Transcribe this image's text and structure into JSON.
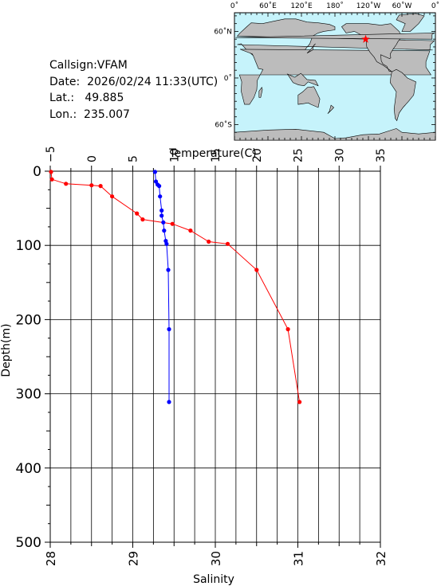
{
  "info": {
    "callsign": "Callsign:VFAM",
    "date": "Date:  2026/02/24 11:33(UTC)",
    "lat": "Lat.:   49.885",
    "lon": "Lon.:  235.007"
  },
  "map": {
    "top_labels": [
      "0˚",
      "60˚E",
      "120˚E",
      "180˚",
      "120˚W",
      "60˚W",
      "0˚"
    ],
    "left_labels": [
      "60˚N",
      "0˚",
      "60˚S"
    ],
    "ocean_color": "#c6f3fb",
    "land_color": "#bcbcbc",
    "marker_color": "#ff0000",
    "marker": {
      "lon": 235.007,
      "lat": 49.885
    }
  },
  "chart_data": {
    "type": "line",
    "ylabel": "Depth(m)",
    "y_ticks": [
      "0",
      "100",
      "200",
      "300",
      "400",
      "500"
    ],
    "ylim": [
      0,
      500
    ],
    "y_inverted": true,
    "grid": true,
    "axes": {
      "temperature": {
        "label": "Temperature(C)",
        "position": "top",
        "lim": [
          -5,
          35
        ],
        "ticks": [
          "−5",
          "0",
          "5",
          "10",
          "15",
          "20",
          "25",
          "30",
          "35"
        ]
      },
      "salinity": {
        "label": "Salinity",
        "position": "bottom",
        "lim": [
          28,
          32
        ],
        "ticks": [
          "28",
          "29",
          "30",
          "31",
          "32"
        ]
      }
    },
    "series": [
      {
        "axis": "salinity",
        "color": "#ff0000",
        "points": [
          {
            "x": 28.01,
            "y": 1
          },
          {
            "x": 28.02,
            "y": 11
          },
          {
            "x": 28.19,
            "y": 17
          },
          {
            "x": 28.5,
            "y": 19
          },
          {
            "x": 28.61,
            "y": 20
          },
          {
            "x": 28.75,
            "y": 34
          },
          {
            "x": 29.05,
            "y": 57
          },
          {
            "x": 29.12,
            "y": 65
          },
          {
            "x": 29.48,
            "y": 71
          },
          {
            "x": 29.7,
            "y": 80
          },
          {
            "x": 29.92,
            "y": 95
          },
          {
            "x": 30.15,
            "y": 98
          },
          {
            "x": 30.5,
            "y": 133
          },
          {
            "x": 30.88,
            "y": 213
          },
          {
            "x": 31.02,
            "y": 311
          }
        ]
      },
      {
        "axis": "temperature",
        "color": "#0000ff",
        "points": [
          {
            "x": 7.7,
            "y": 1
          },
          {
            "x": 7.8,
            "y": 14
          },
          {
            "x": 8.0,
            "y": 18
          },
          {
            "x": 8.2,
            "y": 20
          },
          {
            "x": 8.3,
            "y": 34
          },
          {
            "x": 8.5,
            "y": 53
          },
          {
            "x": 8.5,
            "y": 60
          },
          {
            "x": 8.7,
            "y": 69
          },
          {
            "x": 8.8,
            "y": 80
          },
          {
            "x": 9.0,
            "y": 94
          },
          {
            "x": 9.1,
            "y": 98
          },
          {
            "x": 9.3,
            "y": 133
          },
          {
            "x": 9.4,
            "y": 213
          },
          {
            "x": 9.4,
            "y": 311
          }
        ]
      }
    ]
  }
}
